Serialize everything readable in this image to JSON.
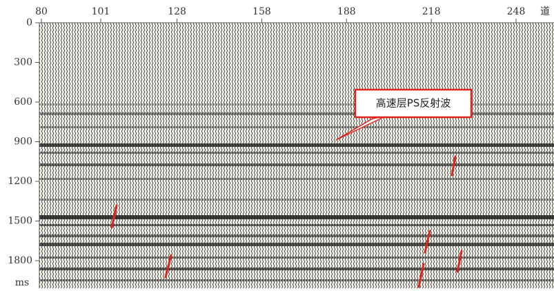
{
  "x_axis": {
    "ticks": [
      80,
      101,
      128,
      158,
      188,
      218,
      248
    ],
    "unit": "道"
  },
  "y_axis": {
    "ticks": [
      0,
      300,
      600,
      900,
      1200,
      1500,
      1800
    ],
    "unit": "ms"
  },
  "annotation": "高速层PS反射波"
}
